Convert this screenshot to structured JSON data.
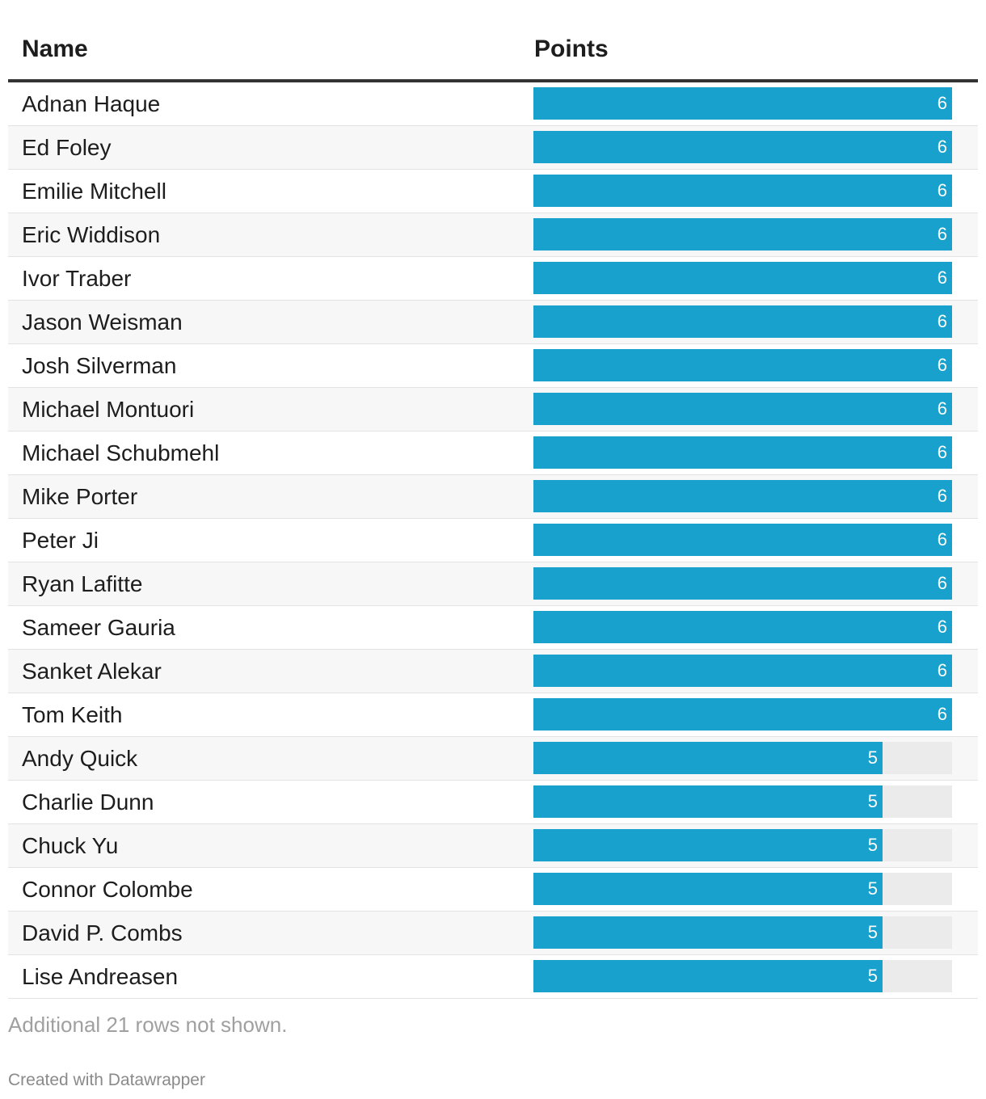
{
  "chart_data": {
    "type": "table",
    "columns": [
      "Name",
      "Points"
    ],
    "scale_max": 6,
    "rows": [
      {
        "name": "Adnan Haque",
        "points": 6
      },
      {
        "name": "Ed Foley",
        "points": 6
      },
      {
        "name": "Emilie Mitchell",
        "points": 6
      },
      {
        "name": "Eric Widdison",
        "points": 6
      },
      {
        "name": "Ivor Traber",
        "points": 6
      },
      {
        "name": "Jason Weisman",
        "points": 6
      },
      {
        "name": "Josh Silverman",
        "points": 6
      },
      {
        "name": "Michael Montuori",
        "points": 6
      },
      {
        "name": "Michael Schubmehl",
        "points": 6
      },
      {
        "name": "Mike Porter",
        "points": 6
      },
      {
        "name": "Peter Ji",
        "points": 6
      },
      {
        "name": "Ryan Lafitte",
        "points": 6
      },
      {
        "name": "Sameer Gauria",
        "points": 6
      },
      {
        "name": "Sanket Alekar",
        "points": 6
      },
      {
        "name": "Tom Keith",
        "points": 6
      },
      {
        "name": "Andy Quick",
        "points": 5
      },
      {
        "name": "Charlie Dunn",
        "points": 5
      },
      {
        "name": "Chuck Yu",
        "points": 5
      },
      {
        "name": "Connor Colombe",
        "points": 5
      },
      {
        "name": "David P. Combs",
        "points": 5
      },
      {
        "name": "Lise Andreasen",
        "points": 5
      }
    ],
    "bar_color": "#18a1cd",
    "track_color": "#ebebeb"
  },
  "header": {
    "name_label": "Name",
    "points_label": "Points"
  },
  "footer": {
    "note": "Additional 21 rows not shown.",
    "credit": "Created with Datawrapper"
  }
}
